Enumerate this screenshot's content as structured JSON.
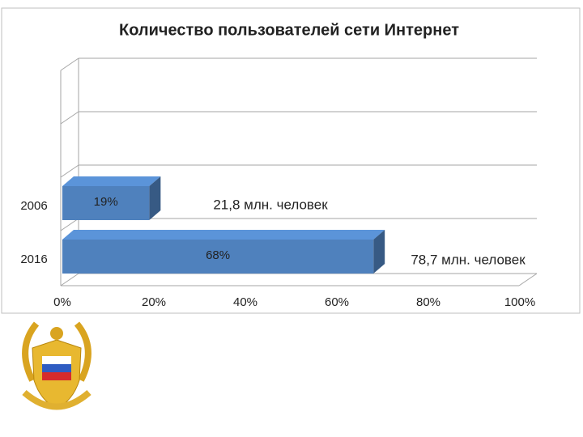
{
  "chart_data": {
    "type": "bar3d-horizontal",
    "title": "Количество пользователей сети Интернет",
    "categories": [
      "2006",
      "2016"
    ],
    "values": [
      19,
      68
    ],
    "value_labels": [
      "19%",
      "68%"
    ],
    "annotations": [
      "21,8 млн. человек",
      "78,7 млн. человек"
    ],
    "color": "#4f81bd",
    "xlim": [
      0,
      100
    ],
    "xticks": [
      {
        "value": 0,
        "label": "0%"
      },
      {
        "value": 20,
        "label": "20%"
      },
      {
        "value": 40,
        "label": "40%"
      },
      {
        "value": 60,
        "label": "60%"
      },
      {
        "value": 80,
        "label": "80%"
      },
      {
        "value": 100,
        "label": "100%"
      }
    ]
  }
}
